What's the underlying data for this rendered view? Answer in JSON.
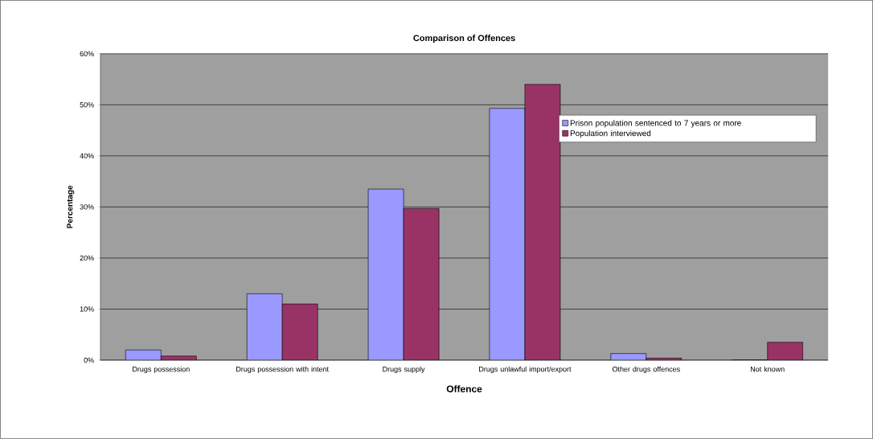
{
  "chart_data": {
    "type": "bar",
    "title": "Comparison of Offences",
    "xlabel": "Offence",
    "ylabel": "Percentage",
    "categories": [
      "Drugs possession",
      "Drugs possession with intent",
      "Drugs supply",
      "Drugs unlawful import/export",
      "Other drugs offences",
      "Not known"
    ],
    "series": [
      {
        "name": "Prison population sentenced to 7 years or more",
        "color": "#9999ff",
        "values": [
          2.0,
          13.0,
          33.5,
          49.3,
          1.3,
          0
        ]
      },
      {
        "name": "Population interviewed",
        "color": "#993366",
        "values": [
          0.8,
          11.0,
          29.7,
          54.0,
          0.4,
          3.5
        ]
      }
    ],
    "ylim": [
      0,
      60
    ],
    "yticks": [
      {
        "value": 0,
        "label": "0%"
      },
      {
        "value": 10,
        "label": "10%"
      },
      {
        "value": 20,
        "label": "20%"
      },
      {
        "value": 30,
        "label": "30%"
      },
      {
        "value": 40,
        "label": "40%"
      },
      {
        "value": 50,
        "label": "50%"
      },
      {
        "value": 60,
        "label": "60%"
      }
    ],
    "grid": "y",
    "legend": "right"
  }
}
